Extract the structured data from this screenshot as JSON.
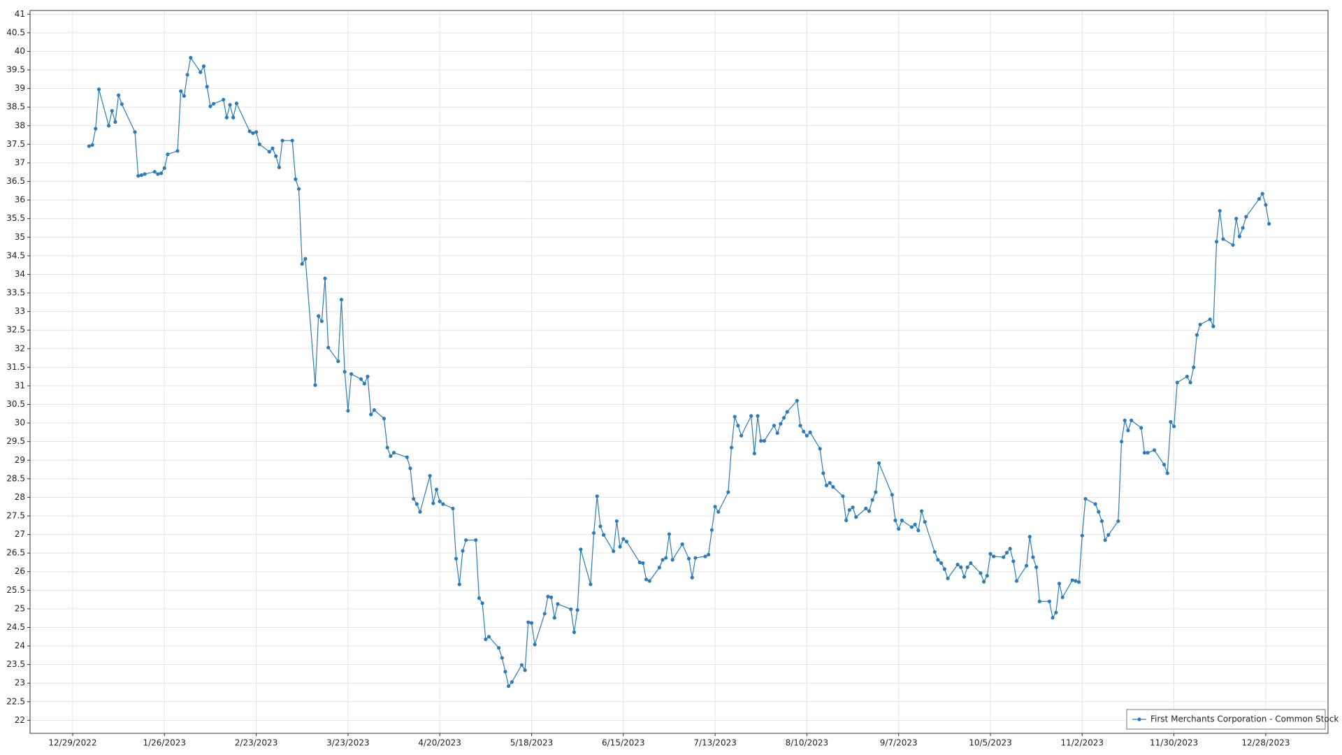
{
  "chart_data": {
    "type": "line",
    "legend": "lower right",
    "grid": true,
    "xlim": [
      "12/16/2022",
      "1/16/2024"
    ],
    "xticks": [
      "12/29/2022",
      "1/26/2023",
      "2/23/2023",
      "3/23/2023",
      "4/20/2023",
      "5/18/2023",
      "6/15/2023",
      "7/13/2023",
      "8/10/2023",
      "9/7/2023",
      "10/5/2023",
      "11/2/2023",
      "11/30/2023",
      "12/28/2023"
    ],
    "ylim": [
      21.65,
      41.1
    ],
    "yticks": [
      22,
      22.5,
      23,
      23.5,
      24,
      24.5,
      25,
      25.5,
      26,
      26.5,
      27,
      27.5,
      28,
      28.5,
      29,
      29.5,
      30,
      30.5,
      31,
      31.5,
      32,
      32.5,
      33,
      33.5,
      34,
      34.5,
      35,
      35.5,
      36,
      36.5,
      37,
      37.5,
      38,
      38.5,
      39,
      39.5,
      40,
      40.5,
      41
    ],
    "x": [
      "1/3/2023",
      "1/4/2023",
      "1/5/2023",
      "1/6/2023",
      "1/9/2023",
      "1/10/2023",
      "1/11/2023",
      "1/12/2023",
      "1/13/2023",
      "1/17/2023",
      "1/18/2023",
      "1/19/2023",
      "1/20/2023",
      "1/23/2023",
      "1/24/2023",
      "1/25/2023",
      "1/26/2023",
      "1/27/2023",
      "1/30/2023",
      "1/31/2023",
      "2/1/2023",
      "2/2/2023",
      "2/3/2023",
      "2/6/2023",
      "2/7/2023",
      "2/8/2023",
      "2/9/2023",
      "2/10/2023",
      "2/13/2023",
      "2/14/2023",
      "2/15/2023",
      "2/16/2023",
      "2/17/2023",
      "2/21/2023",
      "2/22/2023",
      "2/23/2023",
      "2/24/2023",
      "2/27/2023",
      "2/28/2023",
      "3/1/2023",
      "3/2/2023",
      "3/3/2023",
      "3/6/2023",
      "3/7/2023",
      "3/8/2023",
      "3/9/2023",
      "3/10/2023",
      "3/13/2023",
      "3/14/2023",
      "3/15/2023",
      "3/16/2023",
      "3/17/2023",
      "3/20/2023",
      "3/21/2023",
      "3/22/2023",
      "3/23/2023",
      "3/24/2023",
      "3/27/2023",
      "3/28/2023",
      "3/29/2023",
      "3/30/2023",
      "3/31/2023",
      "4/3/2023",
      "4/4/2023",
      "4/5/2023",
      "4/6/2023",
      "4/10/2023",
      "4/11/2023",
      "4/12/2023",
      "4/13/2023",
      "4/14/2023",
      "4/17/2023",
      "4/18/2023",
      "4/19/2023",
      "4/20/2023",
      "4/21/2023",
      "4/24/2023",
      "4/25/2023",
      "4/26/2023",
      "4/27/2023",
      "4/28/2023",
      "5/1/2023",
      "5/2/2023",
      "5/3/2023",
      "5/4/2023",
      "5/5/2023",
      "5/8/2023",
      "5/9/2023",
      "5/10/2023",
      "5/11/2023",
      "5/12/2023",
      "5/15/2023",
      "5/16/2023",
      "5/17/2023",
      "5/18/2023",
      "5/19/2023",
      "5/22/2023",
      "5/23/2023",
      "5/24/2023",
      "5/25/2023",
      "5/26/2023",
      "5/30/2023",
      "5/31/2023",
      "6/1/2023",
      "6/2/2023",
      "6/5/2023",
      "6/6/2023",
      "6/7/2023",
      "6/8/2023",
      "6/9/2023",
      "6/12/2023",
      "6/13/2023",
      "6/14/2023",
      "6/15/2023",
      "6/16/2023",
      "6/20/2023",
      "6/21/2023",
      "6/22/2023",
      "6/23/2023",
      "6/26/2023",
      "6/27/2023",
      "6/28/2023",
      "6/29/2023",
      "6/30/2023",
      "7/3/2023",
      "7/5/2023",
      "7/6/2023",
      "7/7/2023",
      "7/10/2023",
      "7/11/2023",
      "7/12/2023",
      "7/13/2023",
      "7/14/2023",
      "7/17/2023",
      "7/18/2023",
      "7/19/2023",
      "7/20/2023",
      "7/21/2023",
      "7/24/2023",
      "7/25/2023",
      "7/26/2023",
      "7/27/2023",
      "7/28/2023",
      "7/31/2023",
      "8/1/2023",
      "8/2/2023",
      "8/3/2023",
      "8/4/2023",
      "8/7/2023",
      "8/8/2023",
      "8/9/2023",
      "8/10/2023",
      "8/11/2023",
      "8/14/2023",
      "8/15/2023",
      "8/16/2023",
      "8/17/2023",
      "8/18/2023",
      "8/21/2023",
      "8/22/2023",
      "8/23/2023",
      "8/24/2023",
      "8/25/2023",
      "8/28/2023",
      "8/29/2023",
      "8/30/2023",
      "8/31/2023",
      "9/1/2023",
      "9/5/2023",
      "9/6/2023",
      "9/7/2023",
      "9/8/2023",
      "9/11/2023",
      "9/12/2023",
      "9/13/2023",
      "9/14/2023",
      "9/15/2023",
      "9/18/2023",
      "9/19/2023",
      "9/20/2023",
      "9/21/2023",
      "9/22/2023",
      "9/25/2023",
      "9/26/2023",
      "9/27/2023",
      "9/28/2023",
      "9/29/2023",
      "10/2/2023",
      "10/3/2023",
      "10/4/2023",
      "10/5/2023",
      "10/6/2023",
      "10/9/2023",
      "10/10/2023",
      "10/11/2023",
      "10/12/2023",
      "10/13/2023",
      "10/16/2023",
      "10/17/2023",
      "10/18/2023",
      "10/19/2023",
      "10/20/2023",
      "10/23/2023",
      "10/24/2023",
      "10/25/2023",
      "10/26/2023",
      "10/27/2023",
      "10/30/2023",
      "10/31/2023",
      "11/1/2023",
      "11/2/2023",
      "11/3/2023",
      "11/6/2023",
      "11/7/2023",
      "11/8/2023",
      "11/9/2023",
      "11/10/2023",
      "11/13/2023",
      "11/14/2023",
      "11/15/2023",
      "11/16/2023",
      "11/17/2023",
      "11/20/2023",
      "11/21/2023",
      "11/22/2023",
      "11/24/2023",
      "11/27/2023",
      "11/28/2023",
      "11/29/2023",
      "11/30/2023",
      "12/1/2023",
      "12/4/2023",
      "12/5/2023",
      "12/6/2023",
      "12/7/2023",
      "12/8/2023",
      "12/11/2023",
      "12/12/2023",
      "12/13/2023",
      "12/14/2023",
      "12/15/2023",
      "12/18/2023",
      "12/19/2023",
      "12/20/2023",
      "12/21/2023",
      "12/22/2023",
      "12/26/2023",
      "12/27/2023",
      "12/28/2023",
      "12/29/2023"
    ],
    "series": [
      {
        "name": "First Merchants Corporation - Common Stock",
        "color": "#2b7bba",
        "values": [
          37.45,
          37.48,
          37.92,
          38.98,
          38.0,
          38.4,
          38.1,
          38.82,
          38.58,
          37.83,
          36.65,
          36.67,
          36.7,
          36.76,
          36.7,
          36.72,
          36.86,
          37.23,
          37.32,
          38.93,
          38.8,
          39.37,
          39.83,
          39.44,
          39.6,
          39.05,
          38.52,
          38.59,
          38.7,
          38.22,
          38.56,
          38.22,
          38.6,
          37.85,
          37.8,
          37.83,
          37.5,
          37.3,
          37.39,
          37.18,
          36.88,
          37.6,
          37.6,
          36.56,
          36.3,
          34.28,
          34.42,
          31.02,
          32.88,
          32.74,
          33.89,
          32.03,
          31.66,
          33.32,
          31.38,
          30.33,
          31.32,
          31.18,
          31.06,
          31.25,
          30.23,
          30.35,
          30.12,
          29.34,
          29.11,
          29.2,
          29.08,
          28.78,
          27.96,
          27.82,
          27.61,
          28.58,
          27.84,
          28.21,
          27.89,
          27.82,
          27.7,
          26.35,
          25.66,
          26.56,
          26.85,
          26.85,
          25.29,
          25.15,
          24.18,
          24.25,
          23.95,
          23.68,
          23.31,
          22.92,
          23.03,
          23.49,
          23.35,
          24.64,
          24.62,
          24.04,
          24.87,
          25.33,
          25.31,
          24.76,
          25.13,
          24.99,
          24.37,
          24.97,
          26.6,
          25.66,
          27.04,
          28.03,
          27.22,
          26.99,
          26.55,
          27.36,
          26.67,
          26.88,
          26.81,
          26.25,
          26.23,
          25.79,
          25.75,
          26.11,
          26.32,
          26.37,
          27.01,
          26.32,
          26.74,
          26.35,
          25.84,
          26.37,
          26.41,
          26.46,
          27.12,
          27.75,
          27.61,
          28.14,
          29.34,
          30.17,
          29.93,
          29.66,
          30.19,
          29.18,
          30.19,
          29.52,
          29.52,
          29.93,
          29.73,
          29.98,
          30.14,
          30.3,
          30.6,
          29.93,
          29.77,
          29.66,
          29.75,
          29.31,
          28.65,
          28.32,
          28.39,
          28.28,
          28.03,
          27.38,
          27.66,
          27.73,
          27.47,
          27.7,
          27.63,
          27.93,
          28.14,
          28.92,
          28.07,
          27.38,
          27.15,
          27.38,
          27.2,
          27.27,
          27.11,
          27.63,
          27.34,
          26.53,
          26.32,
          26.23,
          26.07,
          25.82,
          26.19,
          26.12,
          25.86,
          26.12,
          26.23,
          25.96,
          25.73,
          25.89,
          26.48,
          26.41,
          26.39,
          26.51,
          26.62,
          26.28,
          25.75,
          26.16,
          26.94,
          26.39,
          26.12,
          25.2,
          25.2,
          24.76,
          24.9,
          25.68,
          25.31,
          25.77,
          25.75,
          25.72,
          26.97,
          27.96,
          27.82,
          27.61,
          27.36,
          26.85,
          26.99,
          27.36,
          29.5,
          30.07,
          29.8,
          30.07,
          29.87,
          29.2,
          29.2,
          29.27,
          28.88,
          28.65,
          30.03,
          29.91,
          31.09,
          31.25,
          31.09,
          31.5,
          32.37,
          32.65,
          32.79,
          32.6,
          34.88,
          35.71,
          34.95,
          34.79,
          35.5,
          35.02,
          35.25,
          35.55,
          36.03,
          36.17,
          35.87,
          35.36
        ]
      }
    ]
  }
}
